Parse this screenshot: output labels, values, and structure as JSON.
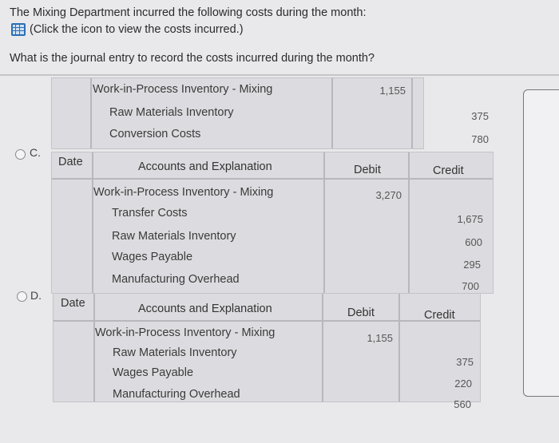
{
  "question": {
    "line1": "The Mixing Department incurred the following costs during the month:",
    "link_text": "(Click the icon to view the costs incurred.)",
    "prompt": "What is the journal entry to record the costs incurred during the month?"
  },
  "option_b_partial": {
    "rows": [
      {
        "account": "Work-in-Process Inventory - Mixing",
        "debit": "1,155",
        "credit": ""
      },
      {
        "account": "Raw Materials Inventory",
        "debit": "",
        "credit": "375"
      },
      {
        "account": "Conversion Costs",
        "debit": "",
        "credit": "780"
      }
    ]
  },
  "option_c": {
    "label": "C.",
    "headers": {
      "date": "Date",
      "account": "Accounts and Explanation",
      "debit": "Debit",
      "credit": "Credit"
    },
    "rows": [
      {
        "account": "Work-in-Process Inventory - Mixing",
        "debit": "3,270",
        "credit": ""
      },
      {
        "account": "Transfer Costs",
        "debit": "",
        "credit": "1,675"
      },
      {
        "account": "Raw Materials Inventory",
        "debit": "",
        "credit": "600"
      },
      {
        "account": "Wages Payable",
        "debit": "",
        "credit": "295"
      },
      {
        "account": "Manufacturing Overhead",
        "debit": "",
        "credit": "700"
      }
    ]
  },
  "option_d": {
    "label": "D.",
    "headers": {
      "date": "Date",
      "account": "Accounts and Explanation",
      "debit": "Debit",
      "credit": "Credit"
    },
    "rows": [
      {
        "account": "Work-in-Process Inventory - Mixing",
        "debit": "1,155",
        "credit": ""
      },
      {
        "account": "Raw Materials Inventory",
        "debit": "",
        "credit": "375"
      },
      {
        "account": "Wages Payable",
        "debit": "",
        "credit": "220"
      },
      {
        "account": "Manufacturing Overhead",
        "debit": "",
        "credit": "560"
      }
    ]
  }
}
